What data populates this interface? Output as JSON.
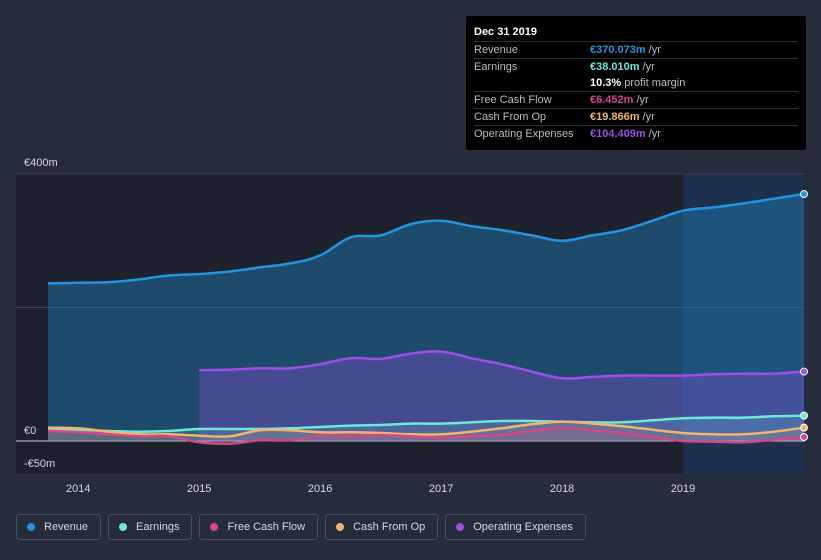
{
  "tooltip": {
    "date": "Dec 31 2019",
    "rows": [
      {
        "label": "Revenue",
        "value": "€370.073m",
        "unit": "/yr",
        "color": "#2394df"
      },
      {
        "label": "Earnings",
        "value": "€38.010m",
        "unit": "/yr",
        "color": "#6ee7d6"
      },
      {
        "label": "",
        "value": "10.3%",
        "unit": "profit margin",
        "color": "#ffffff"
      },
      {
        "label": "Free Cash Flow",
        "value": "€6.452m",
        "unit": "/yr",
        "color": "#d4478b"
      },
      {
        "label": "Cash From Op",
        "value": "€19.866m",
        "unit": "/yr",
        "color": "#f1b36e"
      },
      {
        "label": "Operating Expenses",
        "value": "€104.409m",
        "unit": "/yr",
        "color": "#9e4fe6"
      }
    ]
  },
  "legend": [
    {
      "label": "Revenue",
      "color": "#2394df"
    },
    {
      "label": "Earnings",
      "color": "#6ee7d6"
    },
    {
      "label": "Free Cash Flow",
      "color": "#d4478b"
    },
    {
      "label": "Cash From Op",
      "color": "#f1b36e"
    },
    {
      "label": "Operating Expenses",
      "color": "#9e4fe6"
    }
  ],
  "chart_data": {
    "type": "area",
    "title": "",
    "xlabel": "",
    "ylabel": "",
    "y_tick_labels": [
      "€400m",
      "€0",
      "-€50m"
    ],
    "y_ticks": [
      400,
      0,
      -50
    ],
    "ylim": [
      -50,
      400
    ],
    "xlim": [
      2013.75,
      2020.0
    ],
    "x_tick_labels": [
      "2014",
      "2015",
      "2016",
      "2017",
      "2018",
      "2019"
    ],
    "x_ticks": [
      2014,
      2015,
      2016,
      2017,
      2018,
      2019
    ],
    "highlight_start": 2019.0,
    "series": [
      {
        "name": "Revenue",
        "color": "#2394df",
        "x": [
          2013.75,
          2014.0,
          2014.25,
          2014.5,
          2014.75,
          2015.0,
          2015.25,
          2015.5,
          2015.75,
          2016.0,
          2016.25,
          2016.5,
          2016.75,
          2017.0,
          2017.25,
          2017.5,
          2017.75,
          2018.0,
          2018.25,
          2018.5,
          2018.75,
          2019.0,
          2019.25,
          2019.5,
          2019.75,
          2020.0
        ],
        "values": [
          236,
          237,
          238,
          242,
          248,
          250,
          254,
          260,
          266,
          278,
          305,
          308,
          325,
          330,
          322,
          316,
          308,
          300,
          308,
          316,
          330,
          345,
          350,
          356,
          363,
          370
        ]
      },
      {
        "name": "Operating Expenses",
        "color": "#9e4fe6",
        "x": [
          2015.0,
          2015.25,
          2015.5,
          2015.75,
          2016.0,
          2016.25,
          2016.5,
          2016.75,
          2017.0,
          2017.25,
          2017.5,
          2017.75,
          2018.0,
          2018.25,
          2018.5,
          2018.75,
          2019.0,
          2019.25,
          2019.5,
          2019.75,
          2020.0
        ],
        "values": [
          106,
          107,
          109,
          109,
          115,
          124,
          123,
          131,
          134,
          124,
          115,
          104,
          94,
          96,
          98,
          98,
          98,
          100,
          101,
          101,
          104
        ]
      },
      {
        "name": "Earnings",
        "color": "#6ee7d6",
        "x": [
          2013.75,
          2014.0,
          2014.25,
          2014.5,
          2014.75,
          2015.0,
          2015.25,
          2015.5,
          2015.75,
          2016.0,
          2016.25,
          2016.5,
          2016.75,
          2017.0,
          2017.25,
          2017.5,
          2017.75,
          2018.0,
          2018.25,
          2018.5,
          2018.75,
          2019.0,
          2019.25,
          2019.5,
          2019.75,
          2020.0
        ],
        "values": [
          18,
          17,
          15,
          14,
          15,
          18,
          18,
          18,
          19,
          21,
          23,
          24,
          26,
          26,
          28,
          30,
          30,
          29,
          28,
          28,
          31,
          34,
          35,
          35,
          37,
          38
        ]
      },
      {
        "name": "Cash From Op",
        "color": "#f1b36e",
        "x": [
          2013.75,
          2014.0,
          2014.25,
          2014.5,
          2014.75,
          2015.0,
          2015.25,
          2015.5,
          2015.75,
          2016.0,
          2016.25,
          2016.5,
          2016.75,
          2017.0,
          2017.25,
          2017.5,
          2017.75,
          2018.0,
          2018.25,
          2018.5,
          2018.75,
          2019.0,
          2019.25,
          2019.5,
          2019.75,
          2020.0
        ],
        "values": [
          20,
          19,
          14,
          10,
          10,
          8,
          7,
          16,
          16,
          13,
          13,
          12,
          10,
          10,
          14,
          19,
          25,
          29,
          26,
          22,
          17,
          12,
          10,
          10,
          14,
          20
        ]
      },
      {
        "name": "Free Cash Flow",
        "color": "#d4478b",
        "x": [
          2013.75,
          2014.0,
          2014.25,
          2014.5,
          2014.75,
          2015.0,
          2015.25,
          2015.5,
          2015.75,
          2016.0,
          2016.25,
          2016.5,
          2016.75,
          2017.0,
          2017.25,
          2017.5,
          2017.75,
          2018.0,
          2018.25,
          2018.5,
          2018.75,
          2019.0,
          2019.25,
          2019.5,
          2019.75,
          2020.0
        ],
        "values": [
          15,
          13,
          10,
          7,
          7,
          -2,
          -4,
          1,
          1,
          8,
          7,
          9,
          7,
          5,
          7,
          9,
          15,
          20,
          16,
          12,
          6,
          0,
          -1,
          -2,
          2,
          6
        ]
      }
    ]
  }
}
